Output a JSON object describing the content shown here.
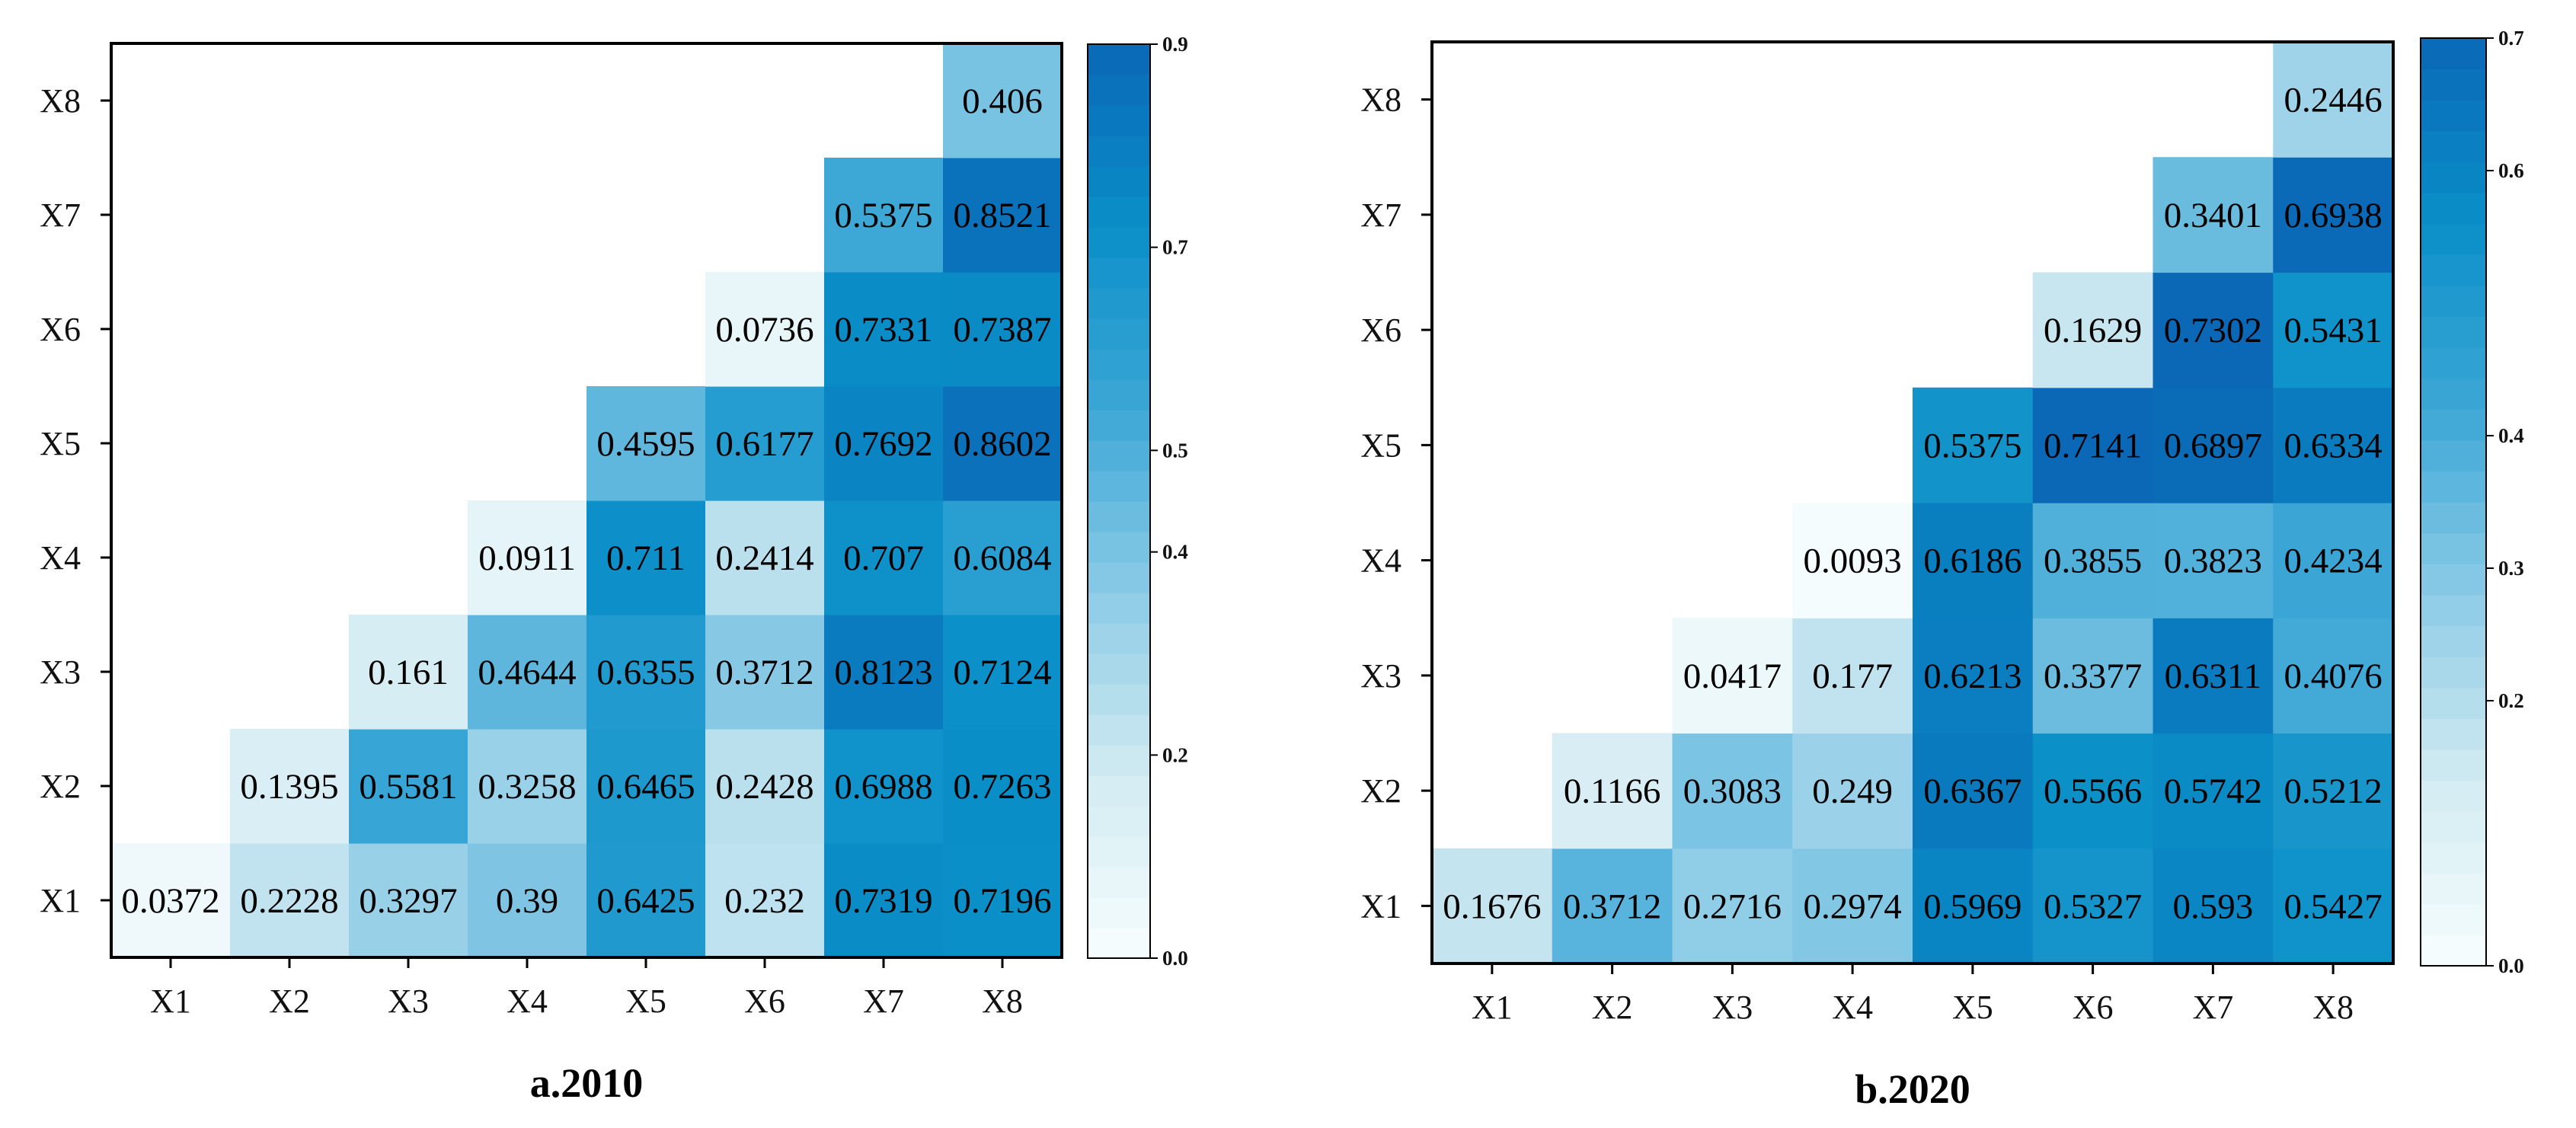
{
  "chart_data": [
    {
      "type": "heatmap",
      "title": "a.2010",
      "x_categories": [
        "X1",
        "X2",
        "X3",
        "X4",
        "X5",
        "X6",
        "X7",
        "X8"
      ],
      "y_categories": [
        "X1",
        "X2",
        "X3",
        "X4",
        "X5",
        "X6",
        "X7",
        "X8"
      ],
      "layout": "lower-right triangle",
      "colorbar": {
        "min": 0.0,
        "max": 0.9,
        "ticks": [
          "0.0",
          "0.2",
          "0.4",
          "0.5",
          "0.7",
          "0.9"
        ]
      },
      "cells": [
        {
          "x": "X1",
          "y": "X1",
          "value": 0.0372,
          "label": "0.0372"
        },
        {
          "x": "X2",
          "y": "X1",
          "value": 0.2228,
          "label": "0.2228"
        },
        {
          "x": "X3",
          "y": "X1",
          "value": 0.3297,
          "label": "0.3297"
        },
        {
          "x": "X4",
          "y": "X1",
          "value": 0.39,
          "label": "0.39"
        },
        {
          "x": "X5",
          "y": "X1",
          "value": 0.6425,
          "label": "0.6425"
        },
        {
          "x": "X6",
          "y": "X1",
          "value": 0.232,
          "label": "0.232"
        },
        {
          "x": "X7",
          "y": "X1",
          "value": 0.7319,
          "label": "0.7319"
        },
        {
          "x": "X8",
          "y": "X1",
          "value": 0.7196,
          "label": "0.7196"
        },
        {
          "x": "X2",
          "y": "X2",
          "value": 0.1395,
          "label": "0.1395"
        },
        {
          "x": "X3",
          "y": "X2",
          "value": 0.5581,
          "label": "0.5581"
        },
        {
          "x": "X4",
          "y": "X2",
          "value": 0.3258,
          "label": "0.3258"
        },
        {
          "x": "X5",
          "y": "X2",
          "value": 0.6465,
          "label": "0.6465"
        },
        {
          "x": "X6",
          "y": "X2",
          "value": 0.2428,
          "label": "0.2428"
        },
        {
          "x": "X7",
          "y": "X2",
          "value": 0.6988,
          "label": "0.6988"
        },
        {
          "x": "X8",
          "y": "X2",
          "value": 0.7263,
          "label": "0.7263"
        },
        {
          "x": "X3",
          "y": "X3",
          "value": 0.161,
          "label": "0.161"
        },
        {
          "x": "X4",
          "y": "X3",
          "value": 0.4644,
          "label": "0.4644"
        },
        {
          "x": "X5",
          "y": "X3",
          "value": 0.6355,
          "label": "0.6355"
        },
        {
          "x": "X6",
          "y": "X3",
          "value": 0.3712,
          "label": "0.3712"
        },
        {
          "x": "X7",
          "y": "X3",
          "value": 0.8123,
          "label": "0.8123"
        },
        {
          "x": "X8",
          "y": "X3",
          "value": 0.7124,
          "label": "0.7124"
        },
        {
          "x": "X4",
          "y": "X4",
          "value": 0.0911,
          "label": "0.0911"
        },
        {
          "x": "X5",
          "y": "X4",
          "value": 0.711,
          "label": "0.711"
        },
        {
          "x": "X6",
          "y": "X4",
          "value": 0.2414,
          "label": "0.2414"
        },
        {
          "x": "X7",
          "y": "X4",
          "value": 0.707,
          "label": "0.707"
        },
        {
          "x": "X8",
          "y": "X4",
          "value": 0.6084,
          "label": "0.6084"
        },
        {
          "x": "X5",
          "y": "X5",
          "value": 0.4595,
          "label": "0.4595"
        },
        {
          "x": "X6",
          "y": "X5",
          "value": 0.6177,
          "label": "0.6177"
        },
        {
          "x": "X7",
          "y": "X5",
          "value": 0.7692,
          "label": "0.7692"
        },
        {
          "x": "X8",
          "y": "X5",
          "value": 0.8602,
          "label": "0.8602"
        },
        {
          "x": "X6",
          "y": "X6",
          "value": 0.0736,
          "label": "0.0736"
        },
        {
          "x": "X7",
          "y": "X6",
          "value": 0.7331,
          "label": "0.7331"
        },
        {
          "x": "X8",
          "y": "X6",
          "value": 0.7387,
          "label": "0.7387"
        },
        {
          "x": "X7",
          "y": "X7",
          "value": 0.5375,
          "label": "0.5375"
        },
        {
          "x": "X8",
          "y": "X7",
          "value": 0.8521,
          "label": "0.8521"
        },
        {
          "x": "X8",
          "y": "X8",
          "value": 0.406,
          "label": "0.406"
        }
      ]
    },
    {
      "type": "heatmap",
      "title": "b.2020",
      "x_categories": [
        "X1",
        "X2",
        "X3",
        "X4",
        "X5",
        "X6",
        "X7",
        "X8"
      ],
      "y_categories": [
        "X1",
        "X2",
        "X3",
        "X4",
        "X5",
        "X6",
        "X7",
        "X8"
      ],
      "layout": "lower-right triangle",
      "colorbar": {
        "min": 0.0,
        "max": 0.7,
        "ticks": [
          "0.0",
          "0.2",
          "0.3",
          "0.4",
          "0.6",
          "0.7"
        ]
      },
      "cells": [
        {
          "x": "X1",
          "y": "X1",
          "value": 0.1676,
          "label": "0.1676"
        },
        {
          "x": "X2",
          "y": "X1",
          "value": 0.3712,
          "label": "0.3712"
        },
        {
          "x": "X3",
          "y": "X1",
          "value": 0.2716,
          "label": "0.2716"
        },
        {
          "x": "X4",
          "y": "X1",
          "value": 0.2974,
          "label": "0.2974"
        },
        {
          "x": "X5",
          "y": "X1",
          "value": 0.5969,
          "label": "0.5969"
        },
        {
          "x": "X6",
          "y": "X1",
          "value": 0.5327,
          "label": "0.5327"
        },
        {
          "x": "X7",
          "y": "X1",
          "value": 0.593,
          "label": "0.593"
        },
        {
          "x": "X8",
          "y": "X1",
          "value": 0.5427,
          "label": "0.5427"
        },
        {
          "x": "X2",
          "y": "X2",
          "value": 0.1166,
          "label": "0.1166"
        },
        {
          "x": "X3",
          "y": "X2",
          "value": 0.3083,
          "label": "0.3083"
        },
        {
          "x": "X4",
          "y": "X2",
          "value": 0.249,
          "label": "0.249"
        },
        {
          "x": "X5",
          "y": "X2",
          "value": 0.6367,
          "label": "0.6367"
        },
        {
          "x": "X6",
          "y": "X2",
          "value": 0.5566,
          "label": "0.5566"
        },
        {
          "x": "X7",
          "y": "X2",
          "value": 0.5742,
          "label": "0.5742"
        },
        {
          "x": "X8",
          "y": "X2",
          "value": 0.5212,
          "label": "0.5212"
        },
        {
          "x": "X3",
          "y": "X3",
          "value": 0.0417,
          "label": "0.0417"
        },
        {
          "x": "X4",
          "y": "X3",
          "value": 0.177,
          "label": "0.177"
        },
        {
          "x": "X5",
          "y": "X3",
          "value": 0.6213,
          "label": "0.6213"
        },
        {
          "x": "X6",
          "y": "X3",
          "value": 0.3377,
          "label": "0.3377"
        },
        {
          "x": "X7",
          "y": "X3",
          "value": 0.6311,
          "label": "0.6311"
        },
        {
          "x": "X8",
          "y": "X3",
          "value": 0.4076,
          "label": "0.4076"
        },
        {
          "x": "X4",
          "y": "X4",
          "value": 0.0093,
          "label": "0.0093"
        },
        {
          "x": "X5",
          "y": "X4",
          "value": 0.6186,
          "label": "0.6186"
        },
        {
          "x": "X6",
          "y": "X4",
          "value": 0.3855,
          "label": "0.3855"
        },
        {
          "x": "X7",
          "y": "X4",
          "value": 0.3823,
          "label": "0.3823"
        },
        {
          "x": "X8",
          "y": "X4",
          "value": 0.4234,
          "label": "0.4234"
        },
        {
          "x": "X5",
          "y": "X5",
          "value": 0.5375,
          "label": "0.5375"
        },
        {
          "x": "X6",
          "y": "X5",
          "value": 0.7141,
          "label": "0.7141"
        },
        {
          "x": "X7",
          "y": "X5",
          "value": 0.6897,
          "label": "0.6897"
        },
        {
          "x": "X8",
          "y": "X5",
          "value": 0.6334,
          "label": "0.6334"
        },
        {
          "x": "X6",
          "y": "X6",
          "value": 0.1629,
          "label": "0.1629"
        },
        {
          "x": "X7",
          "y": "X6",
          "value": 0.7302,
          "label": "0.7302"
        },
        {
          "x": "X8",
          "y": "X6",
          "value": 0.5431,
          "label": "0.5431"
        },
        {
          "x": "X7",
          "y": "X7",
          "value": 0.3401,
          "label": "0.3401"
        },
        {
          "x": "X8",
          "y": "X7",
          "value": 0.6938,
          "label": "0.6938"
        },
        {
          "x": "X8",
          "y": "X8",
          "value": 0.2446,
          "label": "0.2446"
        }
      ]
    }
  ],
  "colormap": [
    "#f7fdfe",
    "#d2ebf2",
    "#8ccbe6",
    "#3ca7d6",
    "#0a8fc8",
    "#0a68b6"
  ]
}
